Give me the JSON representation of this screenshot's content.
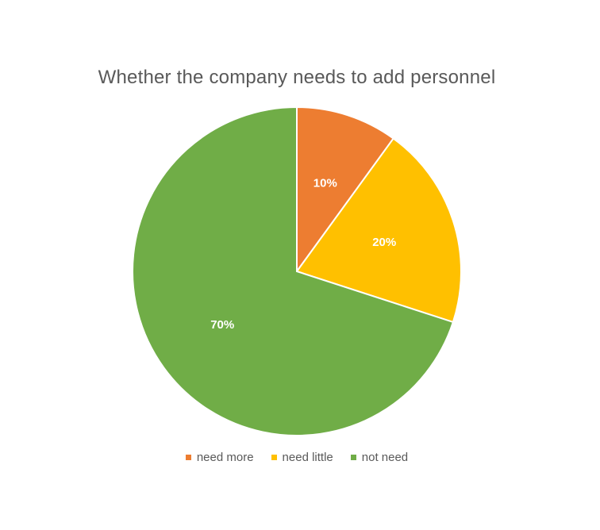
{
  "chart_data": {
    "type": "pie",
    "title": "Whether the company needs to add personnel",
    "categories": [
      "need more",
      "need little",
      "not need"
    ],
    "values": [
      10,
      20,
      70
    ],
    "labels": [
      "10%",
      "20%",
      "70%"
    ],
    "colors": [
      "#ED7D31",
      "#FFC000",
      "#70AD47"
    ],
    "start_angle_deg": 0,
    "direction": "clockwise",
    "legend_position": "bottom"
  }
}
